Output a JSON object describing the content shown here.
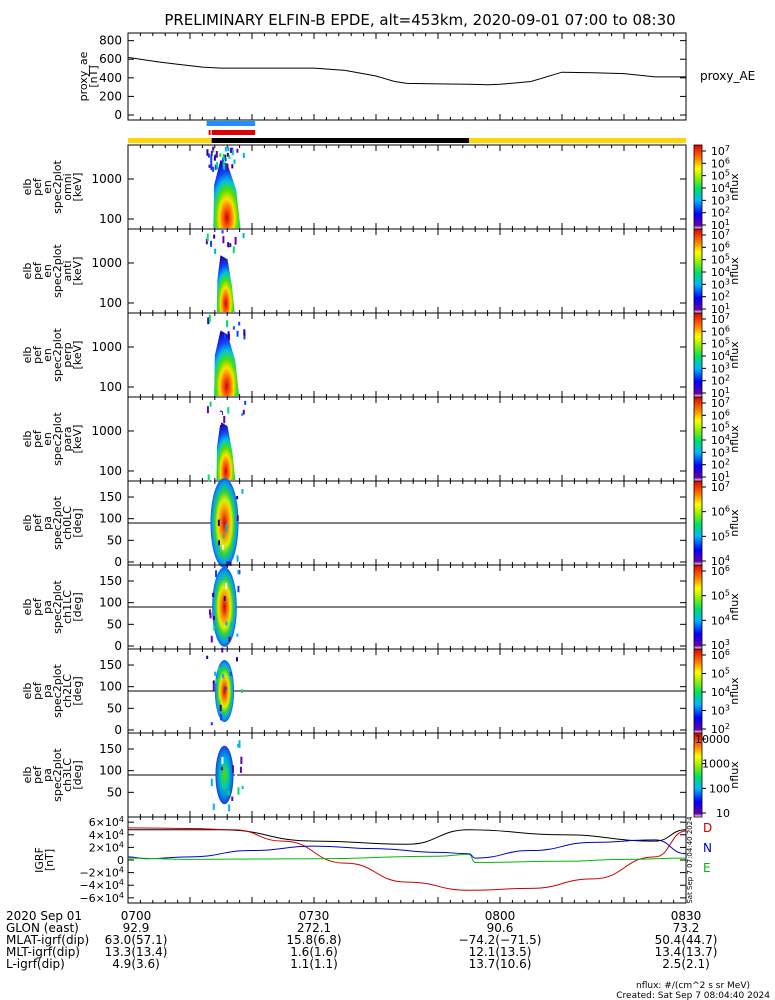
{
  "title": "PRELIMINARY ELFIN-B EPDE, alt=453km, 2020-09-01 07:00 to 08:30",
  "colors": {
    "ae_line": "#000000",
    "bar_yellow": "#ffd700",
    "bar_black": "#000000",
    "bar_red": "#e00000",
    "bar_blue": "#1e90ff",
    "grf_d": "#cc0000",
    "grf_n": "#0000cc",
    "grf_e": "#00bb00",
    "grf_total": "#000000"
  },
  "status_bar": {
    "segments": [
      {
        "from": 0,
        "to": 13.5,
        "color": "yellow"
      },
      {
        "from": 13.5,
        "to": 55,
        "color": "black"
      },
      {
        "from": 55,
        "to": 90,
        "color": "yellow"
      }
    ],
    "blue_marker": {
      "from": 13.0,
      "to": 20.5
    },
    "red_marker": {
      "from": 13.5,
      "to": 20.5
    },
    "red_tick": 13.0
  },
  "panels": {
    "ae": {
      "ylabel": [
        "proxy_ae",
        "[nT]"
      ],
      "legend": "proxy_AE",
      "yticks": [
        "800",
        "600",
        "400",
        "200",
        "0"
      ]
    },
    "en_omni": {
      "ylabel": [
        "elb",
        "pef",
        "en",
        "spec2plot",
        "omni",
        "[keV]"
      ],
      "yticks": [
        "1000",
        "100"
      ],
      "cbar_ticks": [
        "10^7",
        "10^6",
        "10^5",
        "10^4",
        "10^3",
        "10^2",
        "10^1"
      ],
      "cbar_label": "nflux"
    },
    "en_anti": {
      "ylabel": [
        "elb",
        "pef",
        "en",
        "spec2plot",
        "anti",
        "[keV]"
      ],
      "yticks": [
        "1000",
        "100"
      ],
      "cbar_ticks": [
        "10^7",
        "10^6",
        "10^5",
        "10^4",
        "10^3",
        "10^2",
        "10^1"
      ],
      "cbar_label": "nflux"
    },
    "en_perp": {
      "ylabel": [
        "elb",
        "pef",
        "en",
        "spec2plot",
        "perp",
        "[keV]"
      ],
      "yticks": [
        "1000",
        "100"
      ],
      "cbar_ticks": [
        "10^7",
        "10^6",
        "10^5",
        "10^4",
        "10^3",
        "10^2",
        "10^1"
      ],
      "cbar_label": "nflux"
    },
    "en_para": {
      "ylabel": [
        "elb",
        "pef",
        "en",
        "spec2plot",
        "para",
        "[keV]"
      ],
      "yticks": [
        "1000",
        "100"
      ],
      "cbar_ticks": [
        "10^7",
        "10^6",
        "10^5",
        "10^4",
        "10^3",
        "10^2",
        "10^1"
      ],
      "cbar_label": "nflux"
    },
    "pa_ch0": {
      "ylabel": [
        "elb",
        "pef",
        "pa",
        "spec2plot",
        "ch0LC",
        "[deg]"
      ],
      "yticks": [
        "150",
        "100",
        "50",
        "0"
      ],
      "cbar_ticks": [
        "10^7",
        "10^6",
        "10^5",
        "10^4"
      ],
      "cbar_label": "nflux"
    },
    "pa_ch1": {
      "ylabel": [
        "elb",
        "pef",
        "pa",
        "spec2plot",
        "ch1LC",
        "[deg]"
      ],
      "yticks": [
        "150",
        "100",
        "50",
        "0"
      ],
      "cbar_ticks": [
        "10^6",
        "10^5",
        "10^4",
        "10^3"
      ],
      "cbar_label": "nflux"
    },
    "pa_ch2": {
      "ylabel": [
        "elb",
        "pef",
        "pa",
        "spec2plot",
        "ch2LC",
        "[deg]"
      ],
      "yticks": [
        "150",
        "100",
        "50",
        "0"
      ],
      "cbar_ticks": [
        "10^6",
        "10^5",
        "10^4",
        "10^3",
        "10^2"
      ],
      "cbar_label": "nflux"
    },
    "pa_ch3": {
      "ylabel": [
        "elb",
        "pef",
        "pa",
        "spec2plot",
        "ch3LC",
        "[deg]"
      ],
      "yticks": [
        "150",
        "100",
        "50"
      ],
      "cbar_ticks": [
        "10000",
        "1000",
        "100",
        "10"
      ],
      "cbar_label": "nflux"
    },
    "grf": {
      "ylabel": [
        "IGRF",
        "[nT]"
      ],
      "yticks": [
        "6×10^4",
        "4×10^4",
        "2×10^4",
        "0",
        "−2×10^4",
        "−4×10^4",
        "−6×10^4"
      ],
      "legend": [
        "D",
        "N",
        "E"
      ],
      "side_note": "Sat Sep  7 07:04:40 2024"
    }
  },
  "chart_data": [
    {
      "type": "line",
      "title": "",
      "ylabel": "proxy_ae [nT]",
      "ylim": [
        0,
        850
      ],
      "series": [
        {
          "name": "proxy_AE",
          "x": [
            0,
            2,
            5,
            8,
            12,
            15,
            20,
            25,
            30,
            35,
            40,
            43,
            45,
            50,
            55,
            58,
            60,
            65,
            70,
            75,
            80,
            85,
            90
          ],
          "values": [
            620,
            600,
            570,
            545,
            515,
            505,
            505,
            505,
            505,
            480,
            420,
            360,
            340,
            335,
            330,
            325,
            330,
            360,
            460,
            455,
            445,
            410,
            410
          ]
        }
      ]
    },
    {
      "type": "heatmap",
      "title": "",
      "x_ticks": [
        "0700",
        "0730",
        "0800",
        "0830"
      ],
      "panels": [
        "omni",
        "anti",
        "perp",
        "para",
        "ch0LC",
        "ch1LC",
        "ch2LC",
        "ch3LC"
      ],
      "energy_ylim_keV": [
        60,
        5000
      ],
      "pa_ylim_deg": [
        0,
        180
      ],
      "data_interval_minutes": [
        12.5,
        18.5
      ],
      "peak_minute": 15.2,
      "peak_energy_keV": 80,
      "peak_pa_deg": 90,
      "zlabel": "nflux"
    },
    {
      "type": "line",
      "title": "",
      "ylabel": "IGRF [nT]",
      "ylim": [
        -65000,
        65000
      ],
      "series": [
        {
          "name": "total",
          "x": [
            0,
            15,
            30,
            45,
            55,
            70,
            85,
            90
          ],
          "values": [
            48000,
            48000,
            30000,
            25000,
            48000,
            40000,
            30000,
            48000
          ]
        },
        {
          "name": "D",
          "x": [
            0,
            10,
            17,
            25,
            35,
            45,
            55,
            65,
            75,
            85,
            90
          ],
          "values": [
            51000,
            50000,
            48000,
            30000,
            -5000,
            -35000,
            -48000,
            -45000,
            -30000,
            5000,
            46000
          ]
        },
        {
          "name": "N",
          "x": [
            0,
            3,
            10,
            20,
            30,
            40,
            50,
            55,
            56,
            65,
            75,
            85,
            90
          ],
          "values": [
            5000,
            2000,
            5000,
            15000,
            22000,
            18000,
            12000,
            10000,
            3000,
            15000,
            28000,
            32000,
            10000
          ]
        },
        {
          "name": "E",
          "x": [
            0,
            10,
            30,
            50,
            55,
            56,
            70,
            80,
            90
          ],
          "values": [
            3000,
            1000,
            2000,
            6000,
            9000,
            -4000,
            -2000,
            1000,
            3000
          ]
        }
      ]
    }
  ],
  "footer": {
    "rows": [
      {
        "label": "2020 Sep 01",
        "values": [
          "0700",
          "0730",
          "0800",
          "0830"
        ]
      },
      {
        "label": "GLON (east)",
        "values": [
          "92.9",
          "272.1",
          "90.6",
          "73.2"
        ]
      },
      {
        "label": "MLAT-igrf(dip)",
        "values": [
          "63.0(57.1)",
          "15.8(6.8)",
          "−74.2(−71.5)",
          "50.4(44.7)"
        ]
      },
      {
        "label": "MLT-igrf(dip)",
        "values": [
          "13.3(13.4)",
          "1.6(1.6)",
          "12.1(13.5)",
          "13.4(13.7)"
        ]
      },
      {
        "label": "L-igrf(dip)",
        "values": [
          "4.9(3.6)",
          "1.1(1.1)",
          "13.7(10.6)",
          "2.5(2.1)"
        ]
      }
    ],
    "units_note": "nflux: #/(cm^2 s sr MeV)",
    "created": "Created: Sat Sep  7 08:04:40 2024"
  }
}
